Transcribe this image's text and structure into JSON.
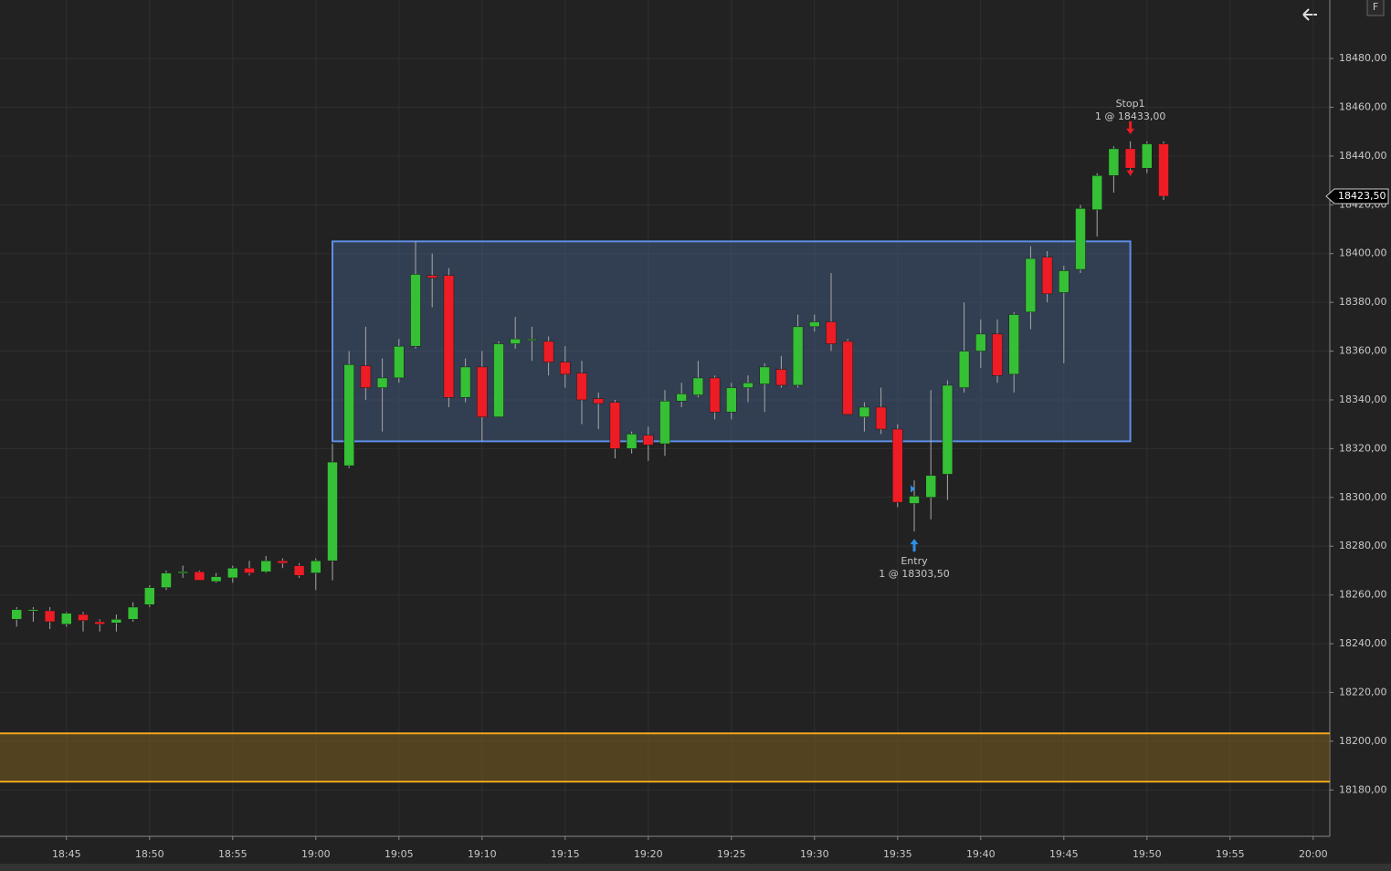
{
  "chart_data": {
    "type": "candlestick",
    "x": [
      "18:42",
      "18:43",
      "18:44",
      "18:45",
      "18:46",
      "18:47",
      "18:48",
      "18:49",
      "18:50",
      "18:51",
      "18:52",
      "18:53",
      "18:54",
      "18:55",
      "18:56",
      "18:57",
      "18:58",
      "18:59",
      "19:00",
      "19:01",
      "19:02",
      "19:03",
      "19:04",
      "19:05",
      "19:06",
      "19:07",
      "19:08",
      "19:09",
      "19:10",
      "19:11",
      "19:12",
      "19:13",
      "19:14",
      "19:15",
      "19:16",
      "19:17",
      "19:18",
      "19:19",
      "19:20",
      "19:21",
      "19:22",
      "19:23",
      "19:24",
      "19:25",
      "19:26",
      "19:27",
      "19:28",
      "19:29",
      "19:30",
      "19:31",
      "19:32",
      "19:33",
      "19:34",
      "19:35",
      "19:36",
      "19:37",
      "19:38",
      "19:39",
      "19:40",
      "19:41",
      "19:42",
      "19:43",
      "19:44",
      "19:45",
      "19:46",
      "19:47",
      "19:48",
      "19:49",
      "19:50",
      "19:51"
    ],
    "open": [
      18250,
      18254,
      18253.5,
      18248,
      18252,
      18249,
      18248.5,
      18250,
      18256,
      18263,
      18269,
      18269.5,
      18265.5,
      18267,
      18271,
      18269.5,
      18274,
      18272,
      18269,
      18274,
      18313,
      18354,
      18345,
      18349,
      18362,
      18391,
      18391,
      18341,
      18353.5,
      18333,
      18363,
      18365,
      18364,
      18355.5,
      18351,
      18340.5,
      18339,
      18320,
      18325.5,
      18322,
      18339.5,
      18342,
      18349,
      18335,
      18345,
      18346.5,
      18352.5,
      18346,
      18370,
      18372,
      18364,
      18333,
      18337,
      18328,
      18297.5,
      18300,
      18309.5,
      18345,
      18360,
      18367,
      18350.5,
      18376,
      18398.5,
      18384,
      18393.5,
      18418,
      18432,
      18443,
      18435,
      18445
    ],
    "high": [
      18255,
      18255,
      18255,
      18253,
      18253,
      18250,
      18252,
      18257,
      18264,
      18270,
      18272,
      18270,
      18269,
      18272,
      18274,
      18276,
      18275,
      18273,
      18275,
      18322,
      18360,
      18370,
      18357,
      18365,
      18405,
      18400,
      18394,
      18357,
      18360,
      18364,
      18374,
      18370,
      18366,
      18362,
      18356,
      18343,
      18340,
      18327,
      18329,
      18344,
      18347,
      18356,
      18350,
      18347,
      18350,
      18355,
      18358,
      18375,
      18375,
      18392,
      18365,
      18339,
      18345,
      18330,
      18307,
      18344,
      18348,
      18380,
      18373,
      18373,
      18376,
      18403,
      18401,
      18395,
      18420,
      18433,
      18444,
      18446,
      18446,
      18446
    ],
    "low": [
      18247,
      18249,
      18246,
      18247,
      18245,
      18245,
      18245,
      18249,
      18255,
      18262,
      18267,
      18266,
      18265,
      18265,
      18268,
      18269,
      18271,
      18267,
      18262,
      18266,
      18312,
      18340,
      18327,
      18347,
      18361,
      18378,
      18337,
      18339,
      18323,
      18333,
      18361,
      18356,
      18350,
      18345,
      18330,
      18328,
      18316,
      18318,
      18315,
      18317,
      18337,
      18341,
      18332,
      18332,
      18339,
      18335,
      18345,
      18345,
      18368,
      18360,
      18334,
      18327,
      18326,
      18296,
      18286,
      18291,
      18299,
      18343,
      18353,
      18347,
      18343,
      18369,
      18380,
      18355,
      18392,
      18407,
      18425,
      18432,
      18433,
      18422
    ],
    "close": [
      18254,
      18254,
      18249,
      18252.5,
      18249.5,
      18248,
      18250,
      18255,
      18263,
      18269,
      18269.5,
      18266,
      18267.5,
      18271,
      18269,
      18274,
      18273,
      18268,
      18274,
      18314.5,
      18354.5,
      18345,
      18349,
      18362,
      18391.5,
      18390,
      18341,
      18353.5,
      18333,
      18363,
      18365,
      18365,
      18355.5,
      18350.5,
      18340,
      18338.5,
      18320,
      18326,
      18321.5,
      18339.5,
      18342.5,
      18349,
      18335,
      18345,
      18347,
      18353.5,
      18346,
      18370,
      18372,
      18363,
      18334,
      18337,
      18328,
      18298,
      18300.5,
      18309,
      18346,
      18360,
      18367,
      18350,
      18375,
      18398,
      18383.5,
      18393,
      18418.5,
      18432,
      18443,
      18435,
      18445,
      18423.5
    ],
    "up_color": "#35c035",
    "down_color": "#ee1c24",
    "xlim": [
      "18:41",
      "20:01"
    ],
    "xticks": [
      "18:45",
      "18:50",
      "18:55",
      "19:00",
      "19:05",
      "19:10",
      "19:15",
      "19:20",
      "19:25",
      "19:30",
      "19:35",
      "19:40",
      "19:45",
      "19:50",
      "19:55",
      "20:00"
    ],
    "ylim": [
      18161,
      18504
    ],
    "yticks": [
      {
        "value": 18180,
        "label": "18180,00"
      },
      {
        "value": 18200,
        "label": "18200,00"
      },
      {
        "value": 18220,
        "label": "18220,00"
      },
      {
        "value": 18240,
        "label": "18240,00"
      },
      {
        "value": 18260,
        "label": "18260,00"
      },
      {
        "value": 18280,
        "label": "18280,00"
      },
      {
        "value": 18300,
        "label": "18300,00"
      },
      {
        "value": 18320,
        "label": "18320,00"
      },
      {
        "value": 18340,
        "label": "18340,00"
      },
      {
        "value": 18360,
        "label": "18360,00"
      },
      {
        "value": 18380,
        "label": "18380,00"
      },
      {
        "value": 18400,
        "label": "18400,00"
      },
      {
        "value": 18420,
        "label": "18420,00"
      },
      {
        "value": 18440,
        "label": "18440,00"
      },
      {
        "value": 18460,
        "label": "18460,00"
      },
      {
        "value": 18480,
        "label": "18480,00"
      }
    ],
    "grid": true,
    "last_price": {
      "value": 18423.5,
      "label": "18423,50"
    },
    "zones": [
      {
        "x0": "19:01",
        "x1": "19:49",
        "y0": 18323,
        "y1": 18405,
        "fill": "rgba(72,98,140,0.45)",
        "stroke": "#5d8fe6"
      },
      {
        "y0": 18183.4,
        "y1": 18203.2,
        "fill": "rgba(110,84,30,0.65)",
        "stroke": "#f0a820"
      }
    ],
    "markers": [
      {
        "name": "Stop1",
        "label": "1 @ 18433,00",
        "x": "19:49",
        "price": 18433,
        "side": "sell",
        "color": "#ee1c24"
      },
      {
        "name": "Entry",
        "label": "1 @ 18303,50",
        "x": "19:36",
        "price": 18303.5,
        "side": "buy",
        "color": "#2f8fe8"
      }
    ]
  },
  "toolbar": {
    "button": "F"
  }
}
